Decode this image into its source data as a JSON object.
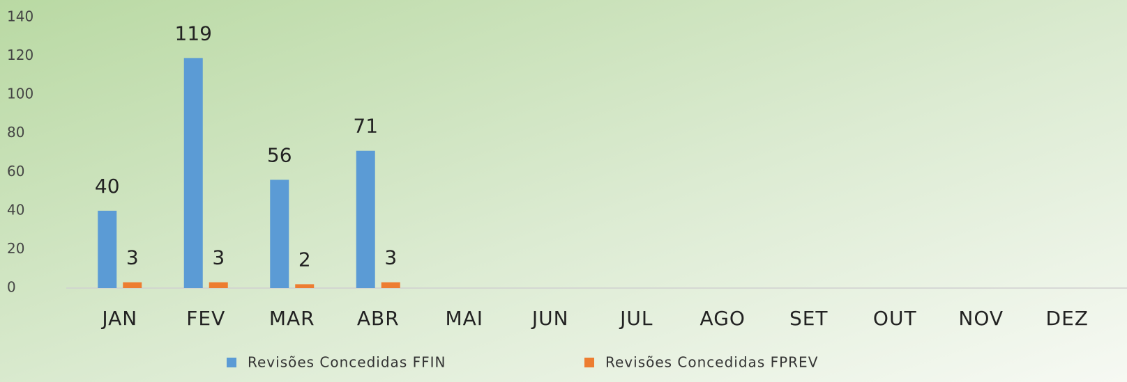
{
  "chart_data": {
    "type": "bar",
    "categories": [
      "JAN",
      "FEV",
      "MAR",
      "ABR",
      "MAI",
      "JUN",
      "JUL",
      "AGO",
      "SET",
      "OUT",
      "NOV",
      "DEZ"
    ],
    "series": [
      {
        "name": "Revisões Concedidas FFIN",
        "color": "#5b9bd5",
        "values": [
          40,
          119,
          56,
          71,
          null,
          null,
          null,
          null,
          null,
          null,
          null,
          null
        ]
      },
      {
        "name": "Revisões Concedidas FPREV",
        "color": "#ed7d31",
        "values": [
          3,
          3,
          2,
          3,
          null,
          null,
          null,
          null,
          null,
          null,
          null,
          null
        ]
      }
    ],
    "ylim": [
      0,
      140
    ],
    "yticks": [
      0,
      20,
      40,
      60,
      80,
      100,
      120,
      140
    ],
    "grid": false,
    "legend": "bottom"
  }
}
